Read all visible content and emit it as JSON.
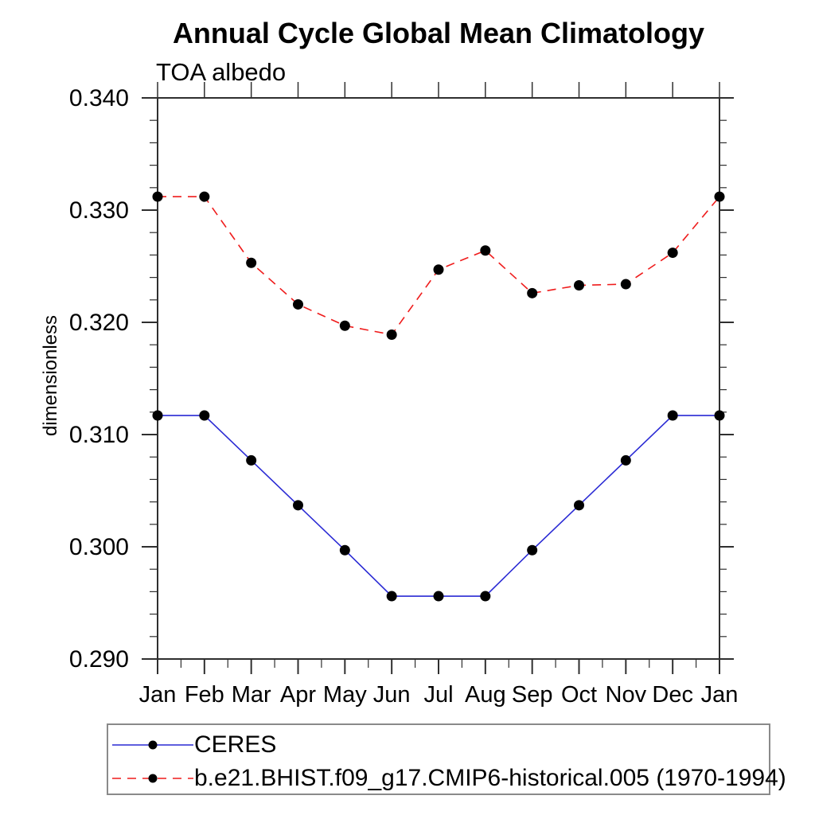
{
  "chart_data": {
    "type": "line",
    "title": "Annual Cycle Global Mean Climatology",
    "subtitle": "TOA albedo",
    "ylabel": "dimensionless",
    "categories": [
      "Jan",
      "Feb",
      "Mar",
      "Apr",
      "May",
      "Jun",
      "Jul",
      "Aug",
      "Sep",
      "Oct",
      "Nov",
      "Dec",
      "Jan"
    ],
    "ylim": [
      0.29,
      0.34
    ],
    "ytick_labels": [
      "0.290",
      "0.300",
      "0.310",
      "0.320",
      "0.330",
      "0.340"
    ],
    "ytick_major_step": 0.01,
    "ytick_minor_step": 0.002,
    "grid": false,
    "axis_color": "#2f2f2f",
    "marker_color": "#000000",
    "legend_position": "bottom-left",
    "series": [
      {
        "name": "CERES",
        "style": "solid",
        "color": "#2a2ad4",
        "marker": "filled-circle",
        "values": [
          0.3117,
          0.3117,
          0.3077,
          0.3037,
          0.2997,
          0.2956,
          0.2956,
          0.2956,
          0.2997,
          0.3037,
          0.3077,
          0.3117,
          0.3117
        ]
      },
      {
        "name": "b.e21.BHIST.f09_g17.CMIP6-historical.005 (1970-1994)",
        "style": "dashed",
        "color": "#ef1c1c",
        "marker": "filled-circle",
        "values": [
          0.3312,
          0.3312,
          0.3253,
          0.3216,
          0.3197,
          0.3189,
          0.3247,
          0.3264,
          0.3226,
          0.3233,
          0.3234,
          0.3262,
          0.3312
        ]
      }
    ]
  }
}
